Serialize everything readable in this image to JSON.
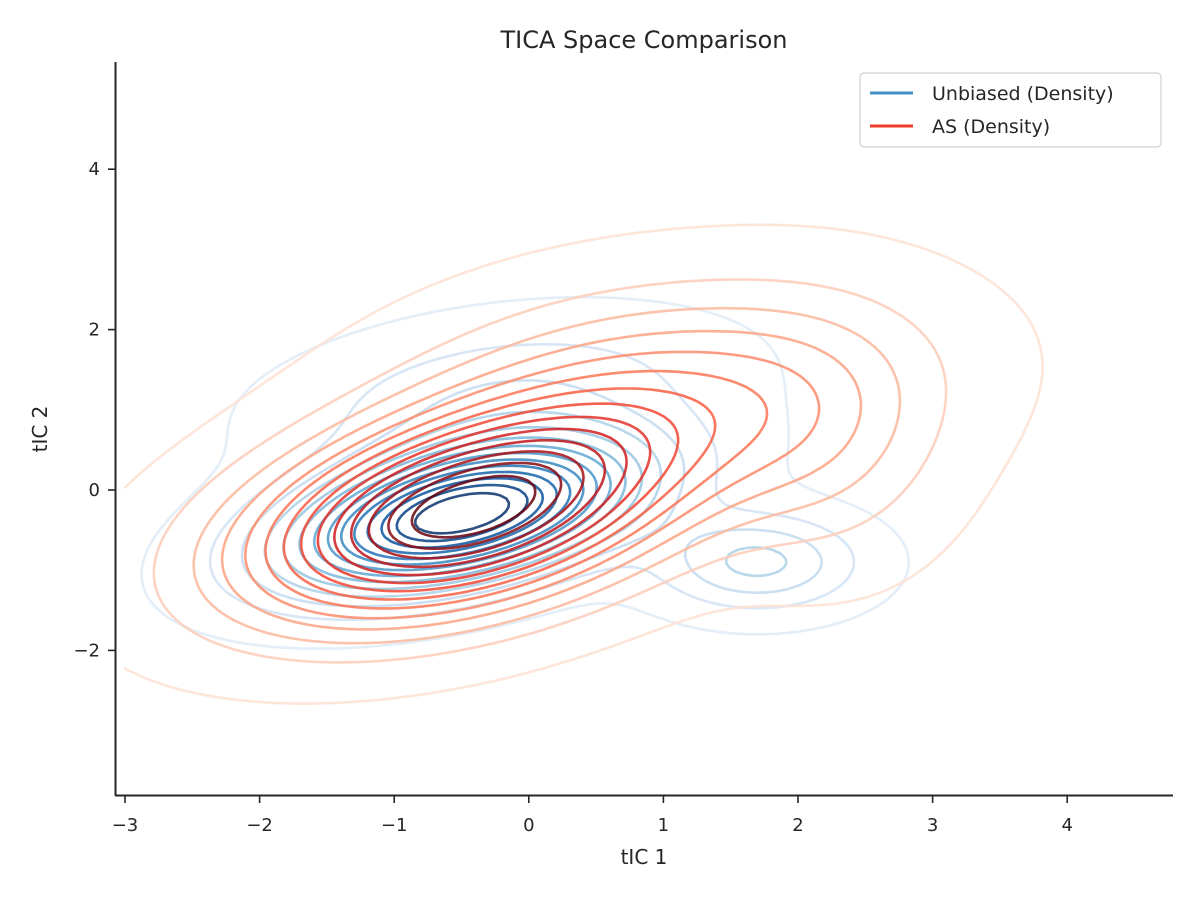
{
  "chart_data": {
    "type": "contour",
    "title": "TICA Space Comparison",
    "xlabel": "tIC 1",
    "ylabel": "tIC 2",
    "xlim": [
      -3.05,
      4.8
    ],
    "ylim": [
      -3.8,
      5.3
    ],
    "xticks": [
      -3,
      -2,
      -1,
      0,
      1,
      2,
      3,
      4
    ],
    "xtick_labels": [
      "−3",
      "−2",
      "−1",
      "0",
      "1",
      "2",
      "3",
      "4"
    ],
    "yticks": [
      -2,
      0,
      2,
      4
    ],
    "ytick_labels": [
      "−2",
      "0",
      "2",
      "4"
    ],
    "grid": false,
    "legend_position": "top-right",
    "series": [
      {
        "name": "Unbiased (Density)",
        "color": "#4292c6",
        "colormap": "Blues",
        "levels": 14,
        "modes": [
          {
            "center": [
              -0.5,
              -0.3
            ],
            "weight": 1.0,
            "sx": 0.85,
            "sy": 0.6,
            "rho": 0.45
          },
          {
            "center": [
              1.7,
              -0.9
            ],
            "weight": 0.25,
            "sx": 0.5,
            "sy": 0.4,
            "rho": 0.0
          },
          {
            "center": [
              -0.2,
              1.2
            ],
            "weight": 0.15,
            "sx": 1.0,
            "sy": 0.6,
            "rho": 0.3
          }
        ]
      },
      {
        "name": "AS (Density)",
        "color": "#ef3b2c",
        "colormap": "Reds",
        "levels": 14,
        "modes": [
          {
            "center": [
              -0.5,
              -0.3
            ],
            "weight": 1.0,
            "sx": 1.05,
            "sy": 0.85,
            "rho": 0.4
          },
          {
            "center": [
              1.0,
              1.2
            ],
            "weight": 0.3,
            "sx": 1.2,
            "sy": 0.9,
            "rho": 0.2
          },
          {
            "center": [
              2.2,
              0.5
            ],
            "weight": 0.12,
            "sx": 0.6,
            "sy": 1.0,
            "rho": 0.0
          }
        ]
      }
    ]
  }
}
